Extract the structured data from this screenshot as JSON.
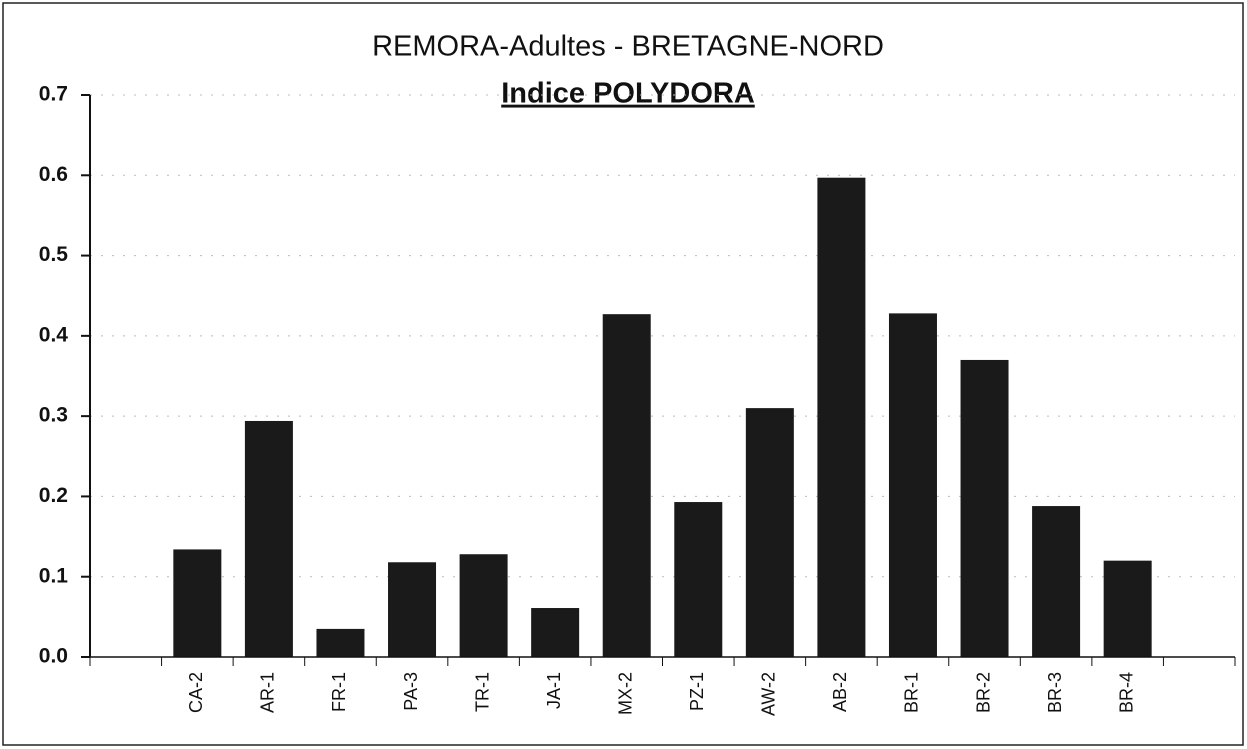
{
  "chart_data": {
    "type": "bar",
    "title": "REMORA-Adultes - BRETAGNE-NORD",
    "subtitle": "Indice POLYDORA",
    "categories": [
      null,
      "CA-2",
      "AR-1",
      "FR-1",
      "PA-3",
      "TR-1",
      "JA-1",
      "MX-2",
      "PZ-1",
      "AW-2",
      "AB-2",
      "BR-1",
      "BR-2",
      "BR-3",
      "BR-4",
      null
    ],
    "values": [
      null,
      0.134,
      0.294,
      0.035,
      0.118,
      0.128,
      0.061,
      0.427,
      0.193,
      0.31,
      0.597,
      0.428,
      0.37,
      0.188,
      0.12,
      null
    ],
    "color": "#1a1a1a",
    "ylim": [
      0,
      0.7
    ],
    "yticks": [
      {
        "value": 0,
        "label": "0.0"
      },
      0.1,
      0.2,
      0.3,
      0.4,
      0.5,
      0.6,
      0.7
    ],
    "grid": true
  }
}
